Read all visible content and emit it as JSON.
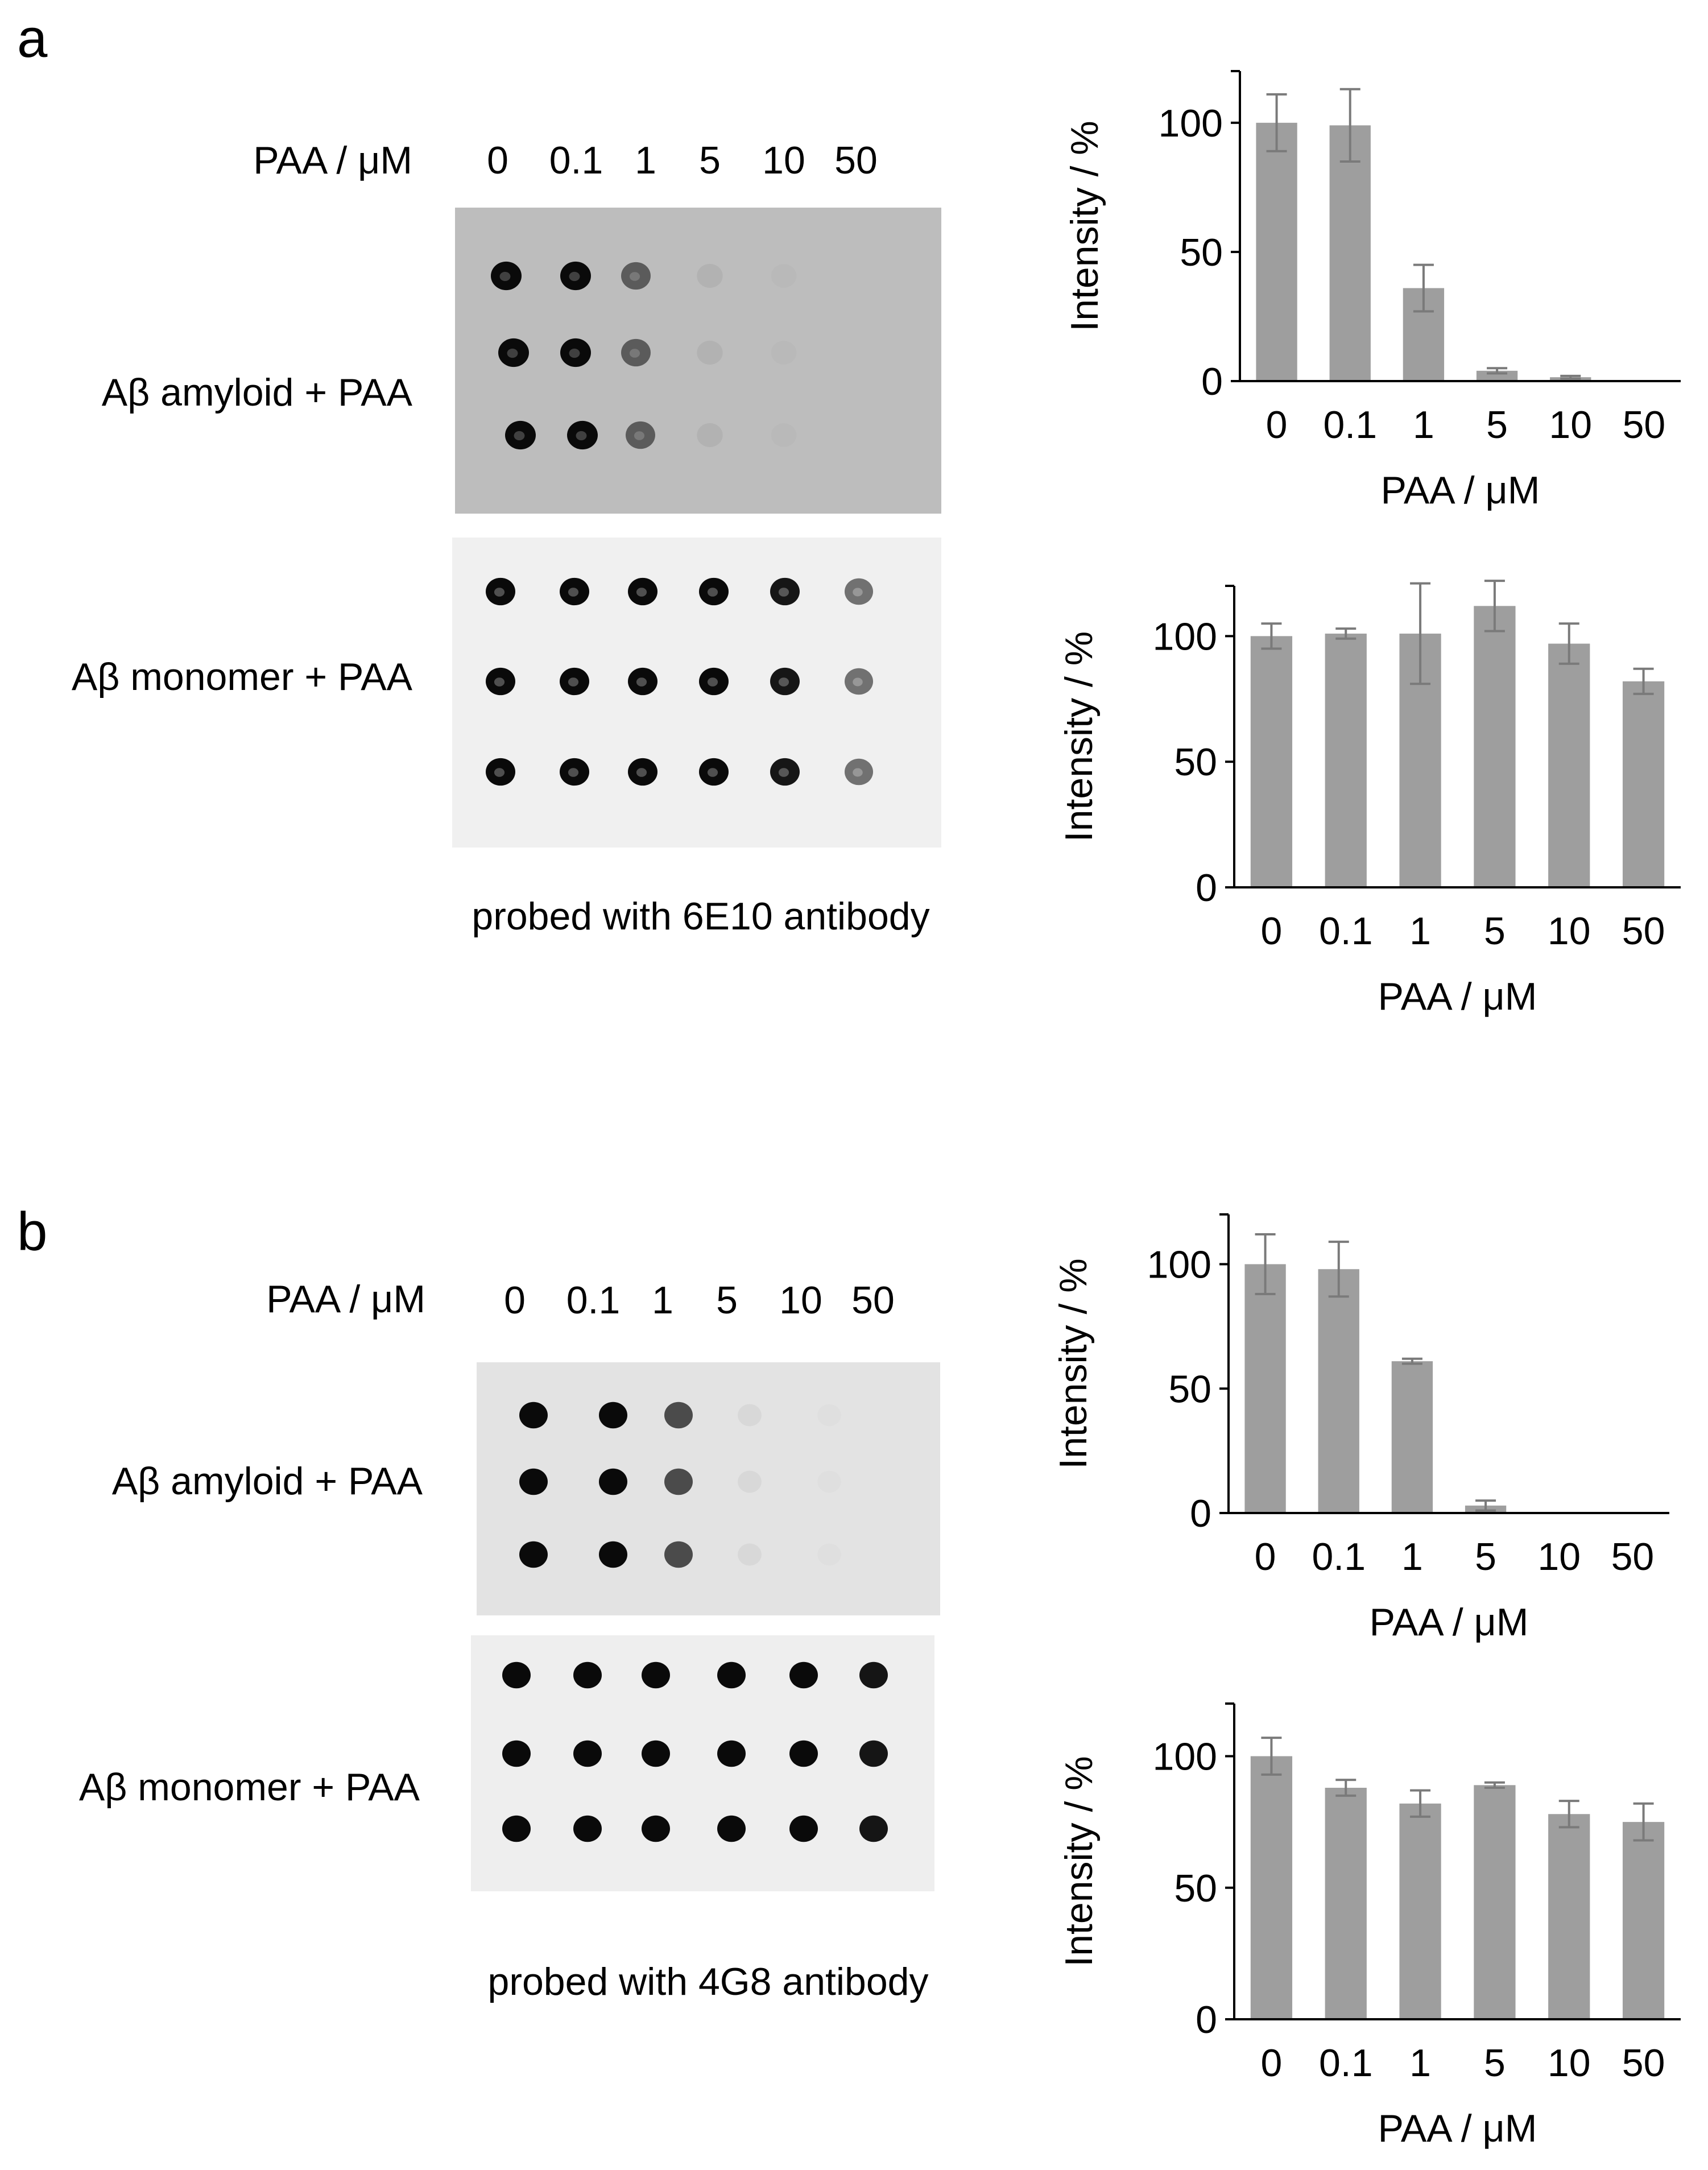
{
  "figure": {
    "panels": [
      {
        "letter": "a",
        "conc_header": "PAA / μM",
        "concentrations": [
          "0",
          "0.1",
          "1",
          "5",
          "10",
          "50"
        ],
        "row_labels": [
          "Aβ amyloid + PAA",
          "Aβ monomer + PAA"
        ],
        "caption": "probed with 6E10 antibody",
        "amyloid_blot": {
          "background": "#bdbdbd",
          "spot_intensity": [
            1.0,
            1.0,
            0.55,
            0.06,
            0.02,
            0.0
          ]
        },
        "monomer_blot": {
          "background": "#f0f0f0",
          "spot_intensity": [
            1.0,
            1.0,
            1.0,
            1.0,
            0.95,
            0.55
          ]
        }
      },
      {
        "letter": "b",
        "conc_header": "PAA / μM",
        "concentrations": [
          "0",
          "0.1",
          "1",
          "5",
          "10",
          "50"
        ],
        "row_labels": [
          "Aβ amyloid + PAA",
          "Aβ monomer + PAA"
        ],
        "caption": "probed with 4G8 antibody",
        "amyloid_blot": {
          "background": "#e3e3e3",
          "spot_intensity": [
            1.0,
            1.0,
            0.7,
            0.05,
            0.02,
            0.0
          ]
        },
        "monomer_blot": {
          "background": "#eeeeee",
          "spot_intensity": [
            1.0,
            1.0,
            1.0,
            1.0,
            1.0,
            0.95
          ]
        }
      }
    ]
  },
  "colors": {
    "bar": "#9e9e9e",
    "error_bar": "#7a7a7a",
    "axis": "#000000"
  },
  "chart_data": [
    {
      "type": "bar",
      "categories": [
        "0",
        "0.1",
        "1",
        "5",
        "10",
        "50"
      ],
      "values": [
        100,
        99,
        36,
        4,
        1.5,
        0
      ],
      "errors": [
        11,
        14,
        9,
        1,
        0.5,
        0
      ],
      "title": "",
      "xlabel": "PAA / μM",
      "ylabel": "Intensity / %",
      "ylim": [
        0,
        120
      ],
      "yticks": [
        "0",
        "50",
        "100"
      ],
      "grid": false
    },
    {
      "type": "bar",
      "categories": [
        "0",
        "0.1",
        "1",
        "5",
        "10",
        "50"
      ],
      "values": [
        100,
        101,
        101,
        112,
        97,
        82
      ],
      "errors": [
        5,
        2,
        20,
        10,
        8,
        5
      ],
      "title": "",
      "xlabel": "PAA / μM",
      "ylabel": "Intensity / %",
      "ylim": [
        0,
        120
      ],
      "yticks": [
        "0",
        "50",
        "100"
      ],
      "grid": false
    },
    {
      "type": "bar",
      "categories": [
        "0",
        "0.1",
        "1",
        "5",
        "10",
        "50"
      ],
      "values": [
        100,
        98,
        61,
        3,
        0,
        0
      ],
      "errors": [
        12,
        11,
        1,
        2,
        0,
        0
      ],
      "title": "",
      "xlabel": "PAA / μM",
      "ylabel": "Intensity / %",
      "ylim": [
        0,
        120
      ],
      "yticks": [
        "0",
        "50",
        "100"
      ],
      "grid": false
    },
    {
      "type": "bar",
      "categories": [
        "0",
        "0.1",
        "1",
        "5",
        "10",
        "50"
      ],
      "values": [
        100,
        88,
        82,
        89,
        78,
        75
      ],
      "errors": [
        7,
        3,
        5,
        1,
        5,
        7
      ],
      "title": "",
      "xlabel": "PAA / μM",
      "ylabel": "Intensity / %",
      "ylim": [
        0,
        120
      ],
      "yticks": [
        "0",
        "50",
        "100"
      ],
      "grid": false
    }
  ]
}
